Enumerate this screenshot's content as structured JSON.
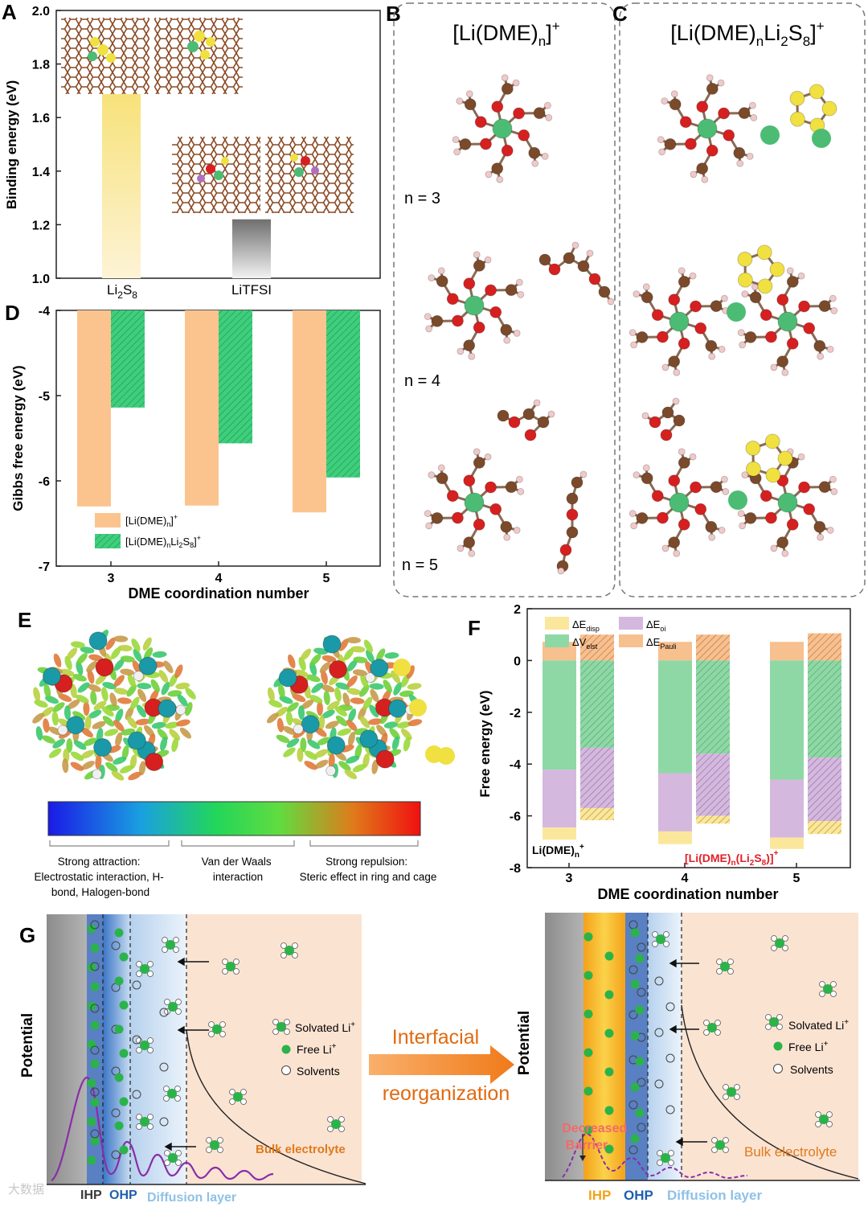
{
  "panel_labels": {
    "A": "A",
    "B": "B",
    "C": "C",
    "D": "D",
    "E": "E",
    "F": "F",
    "G": "G"
  },
  "colors": {
    "orange": "#fbc48e",
    "green": "#3fcf7c",
    "yellow": "#fbe79b",
    "purple": "#d5b8de",
    "salmon": "#f7c08f",
    "lightgreen": "#8ed8a5",
    "grey": "#8c8c8c",
    "redtext": "#e0202a",
    "carbon": "#7a4a2b",
    "oxygen": "#d62020",
    "lithium": "#4cbc74",
    "sulfur": "#f0e040",
    "hydrogen": "#f0c9c9"
  },
  "chart_data": [
    {
      "panel": "A",
      "type": "bar",
      "categories": [
        "Li2S8",
        "LiTFSI"
      ],
      "values": [
        1.69,
        1.22
      ],
      "ylabel": "Binding energy (eV)",
      "ylim": [
        1.0,
        2.0
      ],
      "yticks": [
        "1.0",
        "1.2",
        "1.4",
        "1.6",
        "1.8",
        "2.0"
      ],
      "category_labels": [
        {
          "main": "Li",
          "sub": "2",
          "main2": "S",
          "sub2": "8"
        },
        {
          "main": "LiTFSI"
        }
      ]
    },
    {
      "panel": "D",
      "type": "bar",
      "categories": [
        "3",
        "4",
        "5"
      ],
      "series": [
        {
          "name": "[Li(DME)n]+",
          "values": [
            -6.3,
            -6.29,
            -6.37
          ]
        },
        {
          "name": "[Li(DME)nLi2S8]+",
          "values": [
            -5.14,
            -5.56,
            -5.96
          ]
        }
      ],
      "xlabel": "DME coordination number",
      "ylabel": "Gibbs free energy (eV)",
      "ylim": [
        -7,
        -4
      ],
      "yticks": [
        "-4",
        "-5",
        "-6",
        "-7"
      ],
      "legend": [
        {
          "text": "[Li(DME)n]+"
        },
        {
          "text": "[Li(DME)nLi2S8]+"
        }
      ]
    },
    {
      "panel": "F",
      "type": "bar",
      "categories": [
        "3",
        "4",
        "5"
      ],
      "components": [
        "ΔE_disp",
        "ΔV_elst",
        "ΔE_oi",
        "ΔE_Pauli"
      ],
      "series": [
        {
          "name": "Li(DME)n+",
          "disp": [
            -0.47,
            -0.49,
            -0.44
          ],
          "elst": [
            -4.22,
            -4.35,
            -4.6
          ],
          "oi": [
            -2.23,
            -2.25,
            -2.24
          ],
          "pauli": [
            0.72,
            0.72,
            0.72
          ]
        },
        {
          "name": "[Li(DME)n(Li2S8)]+",
          "disp": [
            -0.47,
            -0.3,
            -0.5
          ],
          "elst": [
            -3.37,
            -3.6,
            -3.75
          ],
          "oi": [
            -2.33,
            -2.4,
            -2.45
          ],
          "pauli": [
            1.0,
            1.0,
            1.05
          ]
        }
      ],
      "xlabel": "DME coordination number",
      "ylabel": "Free energy (eV)",
      "ylim": [
        -8,
        2
      ],
      "yticks": [
        "2",
        "0",
        "-2",
        "-4",
        "-6",
        "-8"
      ]
    }
  ],
  "panel_A": {
    "structure_caption": "adsorption structures on graphene"
  },
  "panel_B": {
    "title_pre": "[Li(DME)",
    "title_sub": "n",
    "title_post": "]",
    "title_sup": "+",
    "n_labels": [
      "n = 3",
      "n = 4",
      "n = 5"
    ]
  },
  "panel_C": {
    "title_pre": "[Li(DME)",
    "title_sub": "n",
    "title_mid": "Li",
    "title_sub2": "2",
    "title_mid2": "S",
    "title_sub3": "8",
    "title_post": "]",
    "title_sup": "+"
  },
  "panel_E": {
    "colorbar_labels": [
      {
        "line1": "Strong attraction:",
        "line2": "Electrostatic interaction, H-",
        "line3": "bond, Halogen-bond"
      },
      {
        "line1": "Van der Waals",
        "line2": "interaction"
      },
      {
        "line1": "Strong repulsion:",
        "line2": "Steric effect in ring and cage"
      }
    ]
  },
  "panel_F": {
    "legend": [
      "ΔE",
      "disp",
      "ΔE",
      "oi",
      "ΔV",
      "elst",
      "ΔE",
      "Pauli"
    ],
    "series_label_left_pre": "Li(DME)",
    "series_label_left_sub": "n",
    "series_label_left_sup": "+",
    "series_label_right_pre": "[Li(DME)",
    "series_label_right_sub": "n",
    "series_label_right_mid": "(Li",
    "series_label_right_sub2": "2",
    "series_label_right_mid2": "S",
    "series_label_right_sub3": "8",
    "series_label_right_post": ")]",
    "series_label_right_sup": "+"
  },
  "panel_G": {
    "ylabel": "Potential",
    "left_layers": [
      "IHP",
      "OHP",
      "Diffusion layer"
    ],
    "bulk": "Bulk electrolyte",
    "legend": [
      "Solvated Li",
      "Free Li",
      "Solvents"
    ],
    "legend_sup": "+",
    "arrow_text_1": "Interfacial",
    "arrow_text_2": "reorganization",
    "right_layers": [
      "IHP",
      "OHP",
      "Diffusion layer"
    ],
    "barrier_line1": "Decreased",
    "barrier_line2": "Barrier",
    "watermark": "大数据"
  }
}
